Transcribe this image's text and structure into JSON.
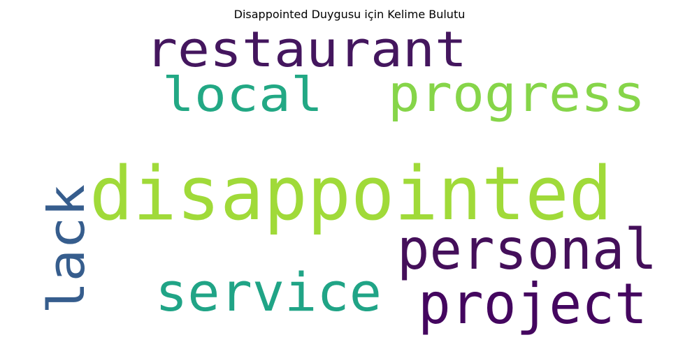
{
  "title": "Disappointed Duygusu için Kelime Bulutu",
  "words": [
    {
      "text": "restaurant",
      "color": "#44165e"
    },
    {
      "text": "local",
      "color": "#22a884"
    },
    {
      "text": "progress",
      "color": "#86d549"
    },
    {
      "text": "disappointed",
      "color": "#a0da39"
    },
    {
      "text": "lack",
      "color": "#365d8d"
    },
    {
      "text": "personal",
      "color": "#440f5a"
    },
    {
      "text": "service",
      "color": "#20a486"
    },
    {
      "text": "project",
      "color": "#44065f"
    }
  ]
}
